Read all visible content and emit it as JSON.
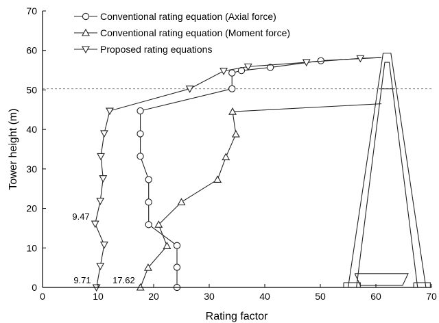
{
  "chart_data": {
    "type": "line",
    "xlabel": "Rating factor",
    "ylabel": "Tower height (m)",
    "xlim": [
      0,
      70
    ],
    "ylim": [
      0,
      70
    ],
    "x_ticks": [
      0,
      10,
      20,
      30,
      40,
      50,
      60,
      70
    ],
    "x_tick_labels": [
      "0",
      "10",
      "20",
      "30",
      "40",
      "50",
      "60",
      "70"
    ],
    "y_ticks": [
      0,
      10,
      20,
      30,
      40,
      50,
      60,
      70
    ],
    "y_tick_labels": [
      "0",
      "10",
      "20",
      "30",
      "40",
      "50",
      "60",
      "70"
    ],
    "grid": false,
    "legend_position": "top-left",
    "series": [
      {
        "name": "Conventional rating equation (Axial force)",
        "marker": "circle",
        "points": [
          [
            24.2,
            0
          ],
          [
            24.2,
            5.1
          ],
          [
            24.2,
            10.6
          ],
          [
            19.1,
            15.9
          ],
          [
            19.1,
            21.6
          ],
          [
            19.1,
            27.3
          ],
          [
            17.6,
            33.2
          ],
          [
            17.6,
            38.9
          ],
          [
            17.6,
            44.7
          ],
          [
            34.1,
            50.3
          ],
          [
            34.1,
            54.3
          ],
          [
            35.8,
            54.9
          ],
          [
            41.0,
            55.7
          ],
          [
            50.1,
            57.4
          ],
          [
            61.0,
            58.2
          ]
        ]
      },
      {
        "name": "Conventional rating equation (Moment force)",
        "marker": "triangle-up",
        "points": [
          [
            17.62,
            0
          ],
          [
            19.0,
            5.0
          ],
          [
            22.4,
            10.5
          ],
          [
            20.9,
            15.9
          ],
          [
            25.0,
            21.6
          ],
          [
            31.5,
            27.3
          ],
          [
            33.0,
            33.0
          ],
          [
            34.8,
            38.8
          ],
          [
            34.2,
            44.5
          ],
          [
            61.0,
            46.5
          ]
        ]
      },
      {
        "name": "Proposed rating equations",
        "marker": "triangle-down",
        "points": [
          [
            9.71,
            0
          ],
          [
            10.4,
            5.4
          ],
          [
            11.1,
            10.8
          ],
          [
            9.47,
            16.1
          ],
          [
            10.4,
            21.9
          ],
          [
            10.9,
            27.6
          ],
          [
            10.5,
            33.2
          ],
          [
            11.1,
            39.0
          ],
          [
            12.1,
            44.7
          ],
          [
            26.5,
            50.3
          ],
          [
            32.6,
            54.8
          ],
          [
            37.0,
            55.9
          ],
          [
            47.5,
            57.0
          ],
          [
            57.2,
            58.0
          ],
          [
            61.0,
            58.2
          ]
        ]
      }
    ],
    "reference_line": {
      "y": 50.3
    },
    "annotations": [
      {
        "text": "9.71",
        "x": 9.71,
        "y": 0
      },
      {
        "text": "17.62",
        "x": 17.62,
        "y": 0
      },
      {
        "text": "9.47",
        "x": 9.47,
        "y": 16.1
      }
    ]
  }
}
